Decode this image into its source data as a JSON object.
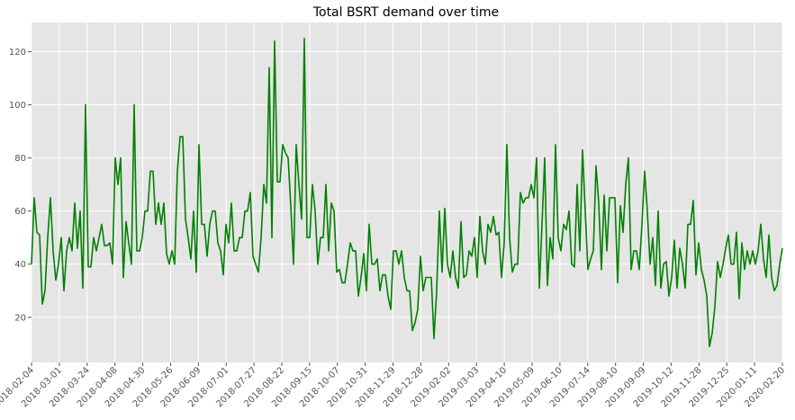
{
  "chart_data": {
    "type": "line",
    "title": "Total BSRT demand over time",
    "xlabel": "",
    "ylabel": "",
    "grid": true,
    "legend": "none",
    "style": {
      "background": "#e5e5e5",
      "grid_color": "#ffffff",
      "line_color": "#008000"
    },
    "ylim": [
      3,
      131
    ],
    "yticks": [
      20,
      40,
      60,
      80,
      100,
      120
    ],
    "xticks": [
      "2018-02-04",
      "2018-03-01",
      "2018-03-24",
      "2018-04-08",
      "2018-04-30",
      "2018-05-26",
      "2018-06-09",
      "2018-07-01",
      "2018-07-27",
      "2018-08-22",
      "2018-09-15",
      "2018-10-07",
      "2018-10-31",
      "2018-11-29",
      "2018-12-28",
      "2019-02-02",
      "2019-03-03",
      "2019-04-10",
      "2019-05-09",
      "2019-06-10",
      "2019-07-14",
      "2019-08-10",
      "2019-09-09",
      "2019-10-12",
      "2019-11-28",
      "2019-12-25",
      "2020-01-11",
      "2020-02-20"
    ],
    "series": [
      {
        "values": [
          40,
          65,
          52,
          51,
          25,
          30,
          50,
          65,
          45,
          34,
          40,
          50,
          30,
          45,
          50,
          45,
          63,
          46,
          60,
          31,
          100,
          39,
          39,
          50,
          45,
          50,
          55,
          47,
          47,
          48,
          40,
          80,
          70,
          80,
          35,
          56,
          48,
          40,
          100,
          45,
          45,
          50,
          60,
          60,
          75,
          75,
          55,
          63,
          55,
          63,
          44,
          40,
          45,
          40,
          75,
          88,
          88,
          57,
          50,
          42,
          60,
          37,
          85,
          55,
          55,
          43,
          55,
          60,
          60,
          48,
          45,
          36,
          55,
          48,
          63,
          45,
          45,
          50,
          50,
          60,
          60,
          67,
          43,
          40,
          37,
          50,
          70,
          63,
          114,
          50,
          124,
          71,
          71,
          85,
          82,
          80,
          62,
          40,
          85,
          70,
          57,
          125,
          50,
          50,
          70,
          60,
          40,
          50,
          50,
          70,
          45,
          63,
          60,
          37,
          38,
          33,
          33,
          40,
          48,
          45,
          45,
          28,
          35,
          44,
          30,
          55,
          40,
          40,
          42,
          30,
          36,
          36,
          28,
          23,
          45,
          45,
          40,
          45,
          35,
          30,
          30,
          15,
          18,
          23,
          43,
          30,
          35,
          35,
          35,
          12,
          30,
          60,
          37,
          61,
          40,
          35,
          45,
          35,
          31,
          56,
          35,
          36,
          45,
          43,
          50,
          35,
          58,
          45,
          40,
          55,
          52,
          58,
          51,
          52,
          35,
          48,
          85,
          50,
          37,
          40,
          40,
          67,
          63,
          65,
          65,
          70,
          65,
          80,
          31,
          55,
          80,
          32,
          50,
          42,
          85,
          50,
          45,
          55,
          53,
          60,
          40,
          39,
          70,
          45,
          83,
          60,
          38,
          42,
          45,
          77,
          63,
          38,
          66,
          45,
          65,
          65,
          65,
          33,
          62,
          52,
          70,
          80,
          38,
          45,
          45,
          38,
          55,
          75,
          60,
          40,
          50,
          32,
          60,
          31,
          40,
          41,
          28,
          35,
          49,
          31,
          46,
          40,
          31,
          55,
          55,
          64,
          36,
          48,
          38,
          34,
          28,
          9,
          14,
          24,
          41,
          35,
          40,
          46,
          51,
          40,
          40,
          52,
          27,
          48,
          38,
          45,
          40,
          45,
          40,
          45,
          55,
          42,
          35,
          51,
          35,
          30,
          32,
          40,
          46
        ]
      }
    ]
  }
}
